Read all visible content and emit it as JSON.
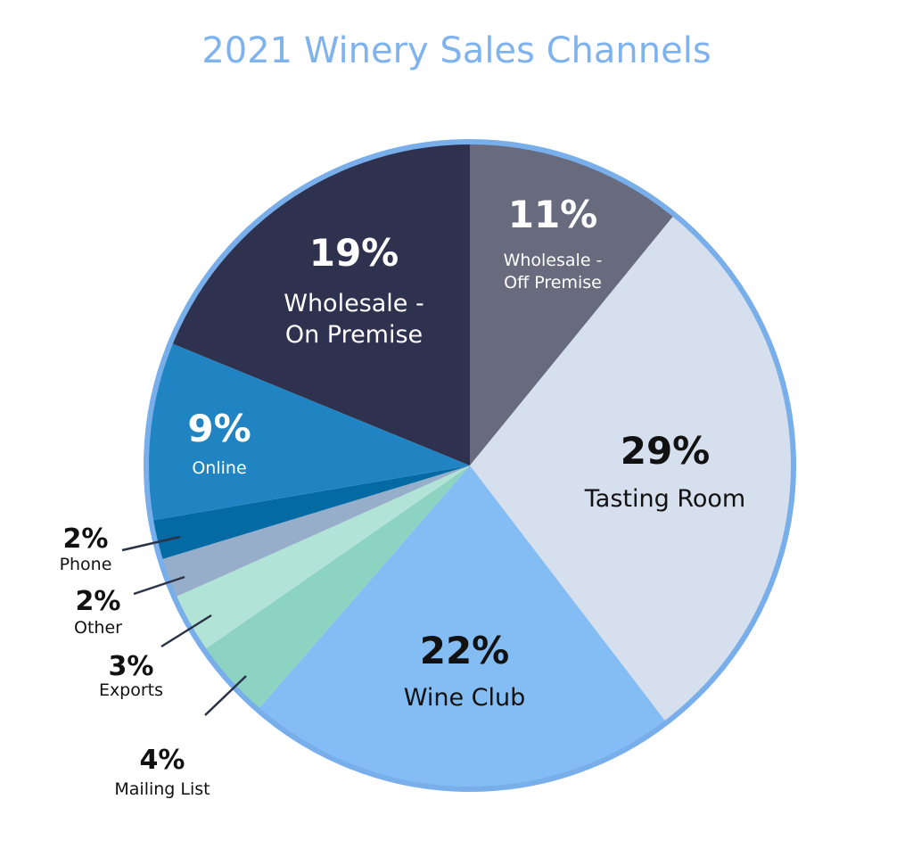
{
  "chart_data": {
    "type": "pie",
    "title": "2021 Winery Sales Channels",
    "slices": [
      {
        "label": "Wholesale - Off Premise",
        "label_lines": [
          "Wholesale -",
          "Off Premise"
        ],
        "value": 11,
        "display": "11%",
        "color": "#686a7e"
      },
      {
        "label": "Tasting Room",
        "label_lines": [
          "Tasting Room"
        ],
        "value": 29,
        "display": "29%",
        "color": "#d6dfed"
      },
      {
        "label": "Wine Club",
        "label_lines": [
          "Wine Club"
        ],
        "value": 22,
        "display": "22%",
        "color": "#84bdf3"
      },
      {
        "label": "Mailing List",
        "label_lines": [
          "Mailing List"
        ],
        "value": 4,
        "display": "4%",
        "color": "#8dd3c1"
      },
      {
        "label": "Exports",
        "label_lines": [
          "Exports"
        ],
        "value": 3,
        "display": "3%",
        "color": "#b1e3d7"
      },
      {
        "label": "Other",
        "label_lines": [
          "Other"
        ],
        "value": 2,
        "display": "2%",
        "color": "#96aec9"
      },
      {
        "label": "Phone",
        "label_lines": [
          "Phone"
        ],
        "value": 2,
        "display": "2%",
        "color": "#046aa4"
      },
      {
        "label": "Online",
        "label_lines": [
          "Online"
        ],
        "value": 9,
        "display": "9%",
        "color": "#2184c2"
      },
      {
        "label": "Wholesale - On Premise",
        "label_lines": [
          "Wholesale -",
          "On Premise"
        ],
        "value": 19,
        "display": "19%",
        "color": "#2e324e"
      }
    ]
  },
  "colors": {
    "title": "#7fb3ee",
    "outline": "#78aeea",
    "leader": "#2b3347",
    "text_dark": "#111111",
    "text_light": "#ffffff"
  }
}
